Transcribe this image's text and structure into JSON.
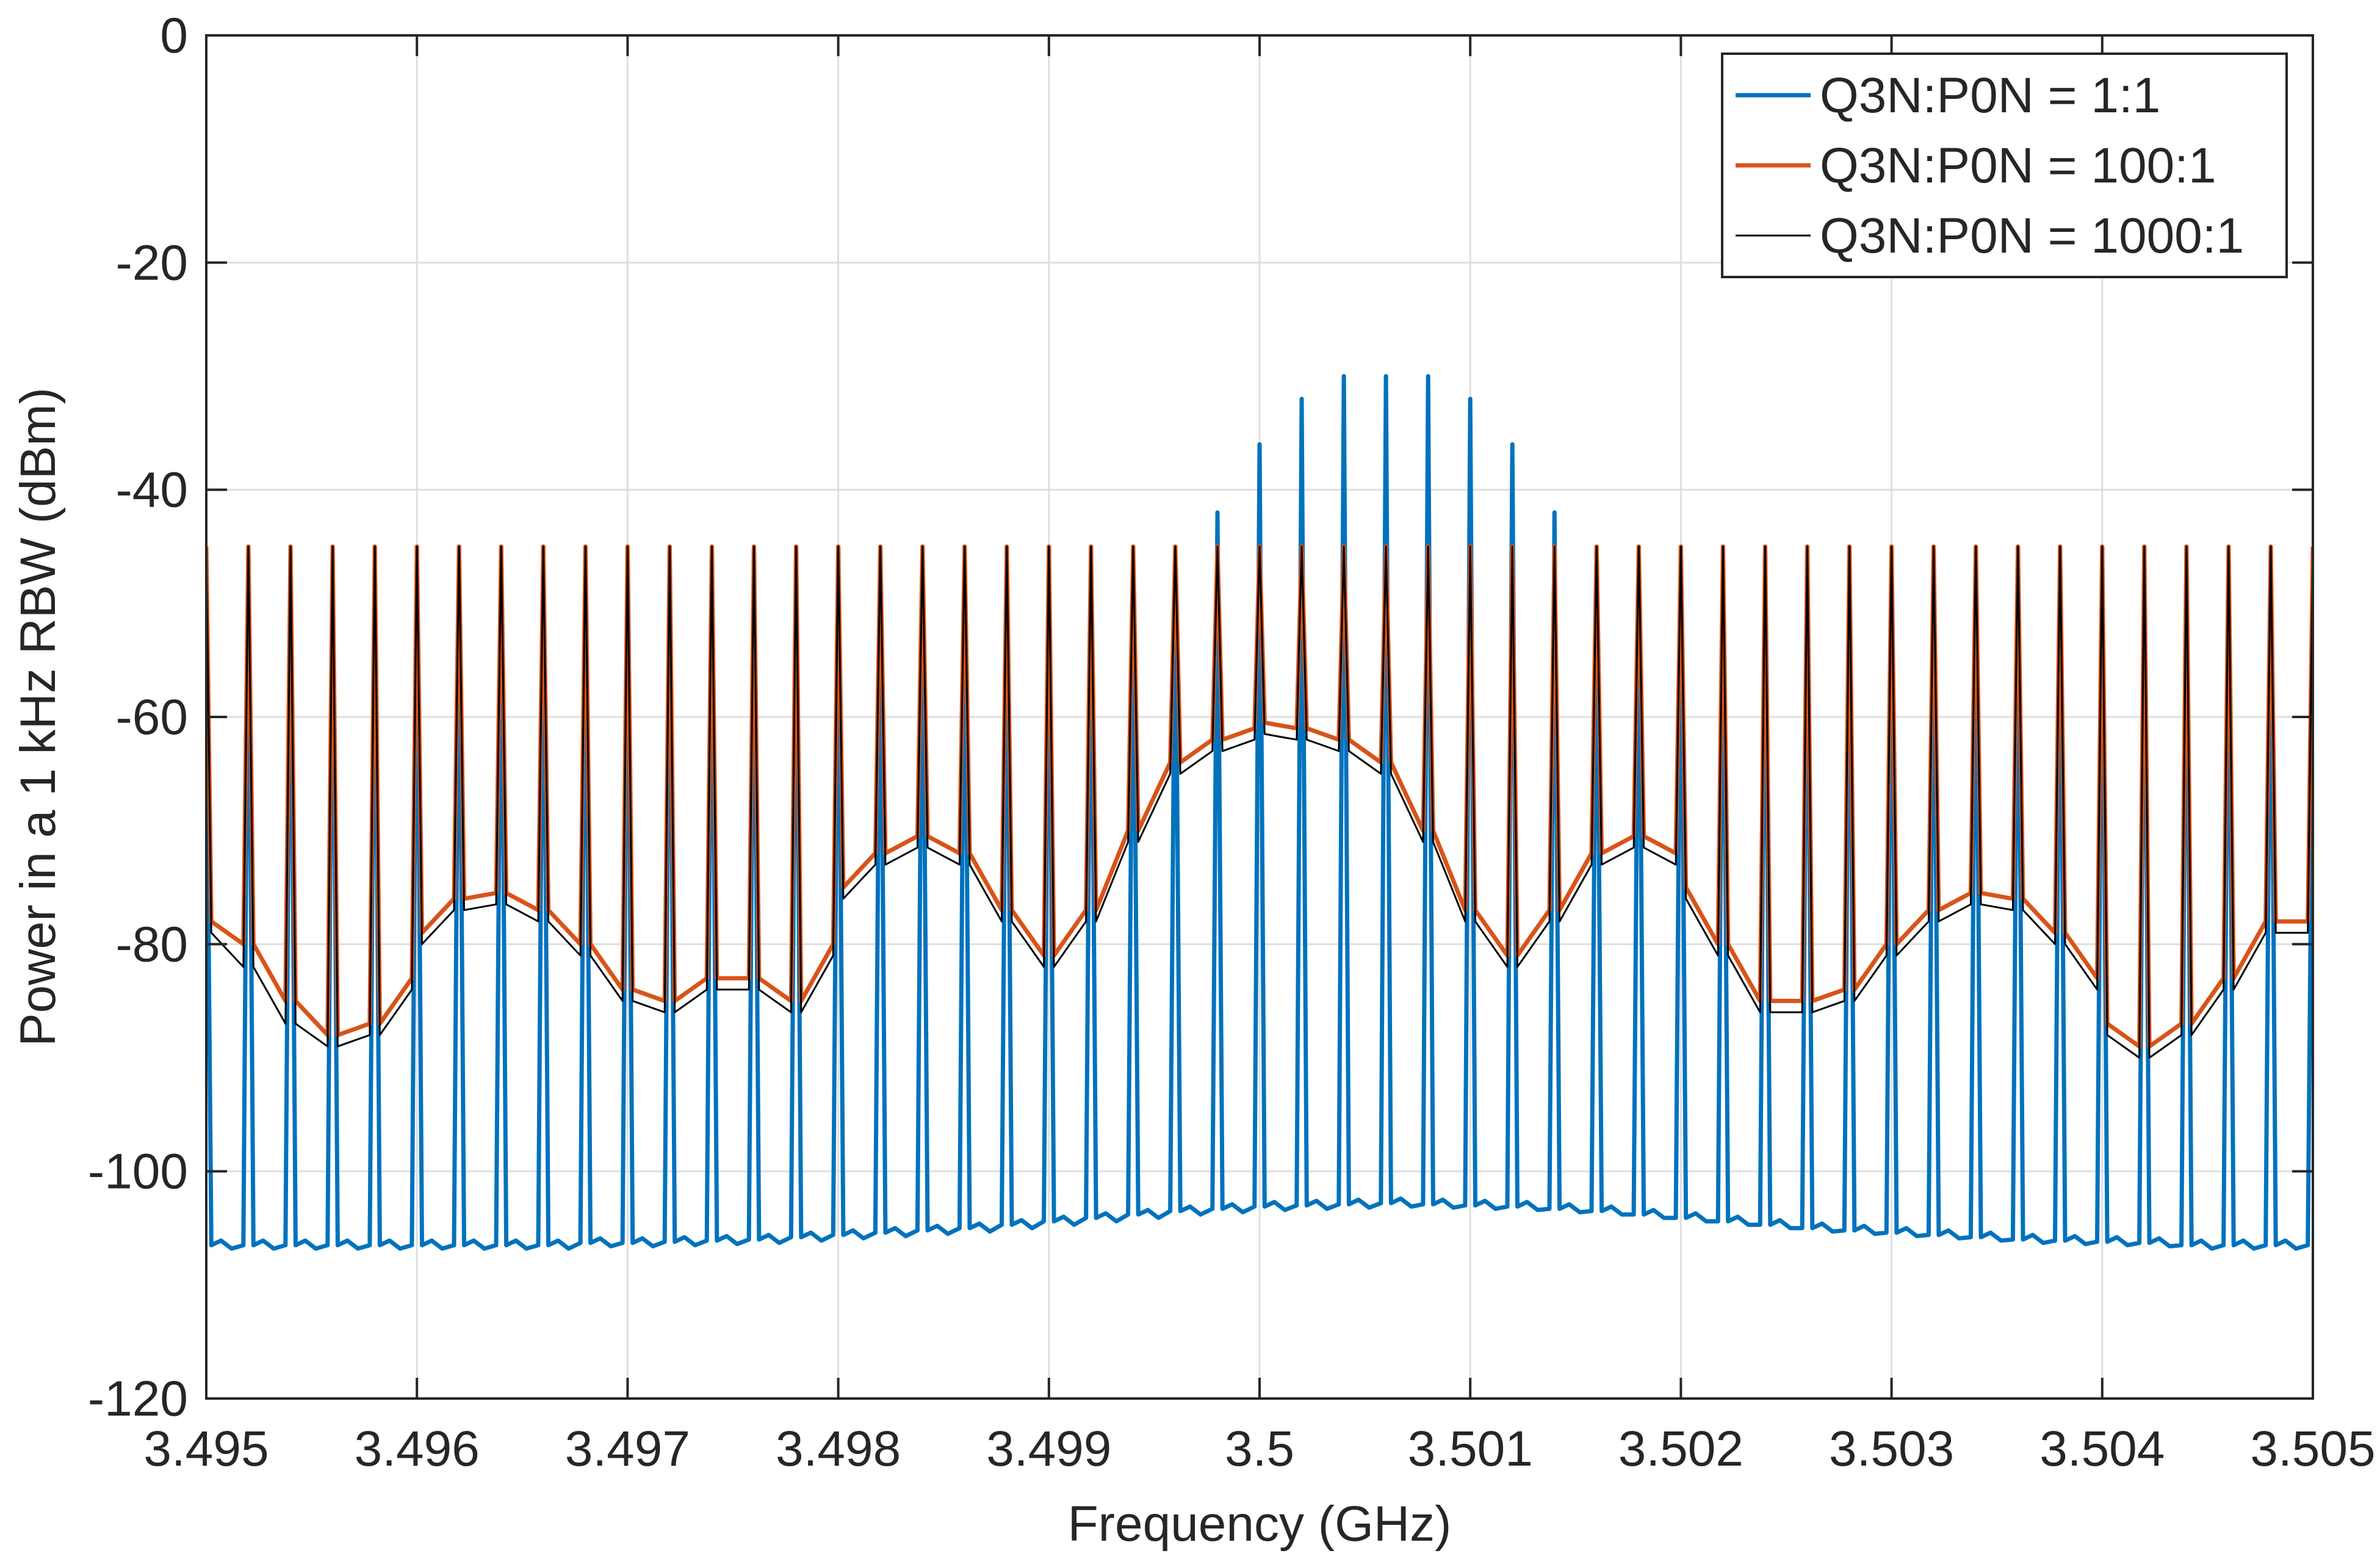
{
  "chart_data": {
    "type": "line",
    "xlabel": "Frequency (GHz)",
    "ylabel": "Power in a 1 kHz RBW (dBm)",
    "xlim": [
      3.495,
      3.505
    ],
    "ylim": [
      -120,
      0
    ],
    "x_ticks": [
      "3.495",
      "3.496",
      "3.497",
      "3.498",
      "3.499",
      "3.5",
      "3.501",
      "3.502",
      "3.503",
      "3.504",
      "3.505"
    ],
    "y_ticks": [
      "0",
      "-20",
      "-40",
      "-60",
      "-80",
      "-100",
      "-120"
    ],
    "grid": true,
    "legend_position": "top-right",
    "comb": {
      "tone_spacing_ghz": 0.0002,
      "first_tone_ghz": 3.495,
      "last_tone_ghz": 3.505
    },
    "series": [
      {
        "name": "Q3N:P0N = 1:1",
        "color": "#0072BD",
        "line_style": "thick",
        "description_values": "tone peaks (dBm) at comb tones from 3.495 to 3.505 GHz; floor between tones",
        "peaks": [
          -56,
          -45,
          -45,
          -45,
          -45,
          -45,
          -45,
          -45,
          -45,
          -45,
          -45,
          -45,
          -45,
          -45,
          -45,
          -45,
          -45,
          -45,
          -45,
          -45,
          -45,
          -45,
          -45,
          -45,
          -42,
          -36,
          -32,
          -30,
          -30,
          -30,
          -32,
          -36,
          -42,
          -45,
          -45,
          -45,
          -45,
          -45,
          -45,
          -45,
          -45,
          -45,
          -45,
          -45,
          -45,
          -45,
          -45,
          -45,
          -45,
          -45,
          -56
        ],
        "floor": [
          -106.5,
          -106.5,
          -106.5,
          -106.5,
          -106.5,
          -106.5,
          -106.5,
          -106.5,
          -106.5,
          -106.3,
          -106.3,
          -106.2,
          -106.1,
          -106,
          -105.8,
          -105.6,
          -105.4,
          -105.2,
          -105,
          -104.7,
          -104.4,
          -104.1,
          -103.8,
          -103.5,
          -103.3,
          -103.1,
          -103,
          -102.9,
          -102.8,
          -102.9,
          -103,
          -103.1,
          -103.3,
          -103.5,
          -103.8,
          -104.1,
          -104.4,
          -104.7,
          -105,
          -105.2,
          -105.4,
          -105.6,
          -105.8,
          -106,
          -106.1,
          -106.2,
          -106.3,
          -106.5,
          -106.5,
          -106.5
        ]
      },
      {
        "name": "Q3N:P0N = 100:1",
        "color": "#D95319",
        "line_style": "thick",
        "peaks": [
          -45,
          -45,
          -45,
          -45,
          -45,
          -45,
          -45,
          -45,
          -45,
          -45,
          -45,
          -45,
          -45,
          -45,
          -45,
          -45,
          -45,
          -45,
          -45,
          -45,
          -45,
          -45,
          -45,
          -45,
          -45,
          -45,
          -45,
          -45,
          -45,
          -45,
          -45,
          -45,
          -45,
          -45,
          -45,
          -45,
          -45,
          -45,
          -45,
          -45,
          -45,
          -45,
          -45,
          -45,
          -45,
          -45,
          -45,
          -45,
          -45,
          -45,
          -45
        ],
        "floor": [
          -78,
          -80,
          -85,
          -88,
          -87,
          -83,
          -79,
          -76,
          -75.5,
          -77,
          -80,
          -84,
          -85,
          -83,
          -83,
          -85,
          -80,
          -75,
          -72,
          -70.5,
          -72,
          -77,
          -81,
          -77,
          -70,
          -64,
          -62,
          -61,
          -60.5,
          -61,
          -62,
          -64,
          -70,
          -77,
          -81,
          -77,
          -72,
          -70.5,
          -72,
          -75,
          -80,
          -85,
          -85,
          -84,
          -80,
          -77,
          -75.5,
          -76,
          -79,
          -83,
          -87,
          -89,
          -87,
          -83,
          -78
        ]
      },
      {
        "name": "Q3N:P0N = 1000:1",
        "color": "#000000",
        "line_style": "thin",
        "peaks": [
          -45,
          -45,
          -45,
          -45,
          -45,
          -45,
          -45,
          -45,
          -45,
          -45,
          -45,
          -45,
          -45,
          -45,
          -45,
          -45,
          -45,
          -45,
          -45,
          -45,
          -45,
          -45,
          -45,
          -45,
          -45,
          -45,
          -45,
          -45,
          -45,
          -45,
          -45,
          -45,
          -45,
          -45,
          -45,
          -45,
          -45,
          -45,
          -45,
          -45,
          -45,
          -45,
          -45,
          -45,
          -45,
          -45,
          -45,
          -45,
          -45,
          -45,
          -45
        ],
        "floor": [
          -79,
          -82,
          -87,
          -89,
          -88,
          -84,
          -80,
          -77,
          -76.5,
          -78,
          -81,
          -85,
          -86,
          -84,
          -84,
          -86,
          -81,
          -76,
          -73,
          -71.5,
          -73,
          -78,
          -82,
          -78,
          -71,
          -65,
          -63,
          -62,
          -61.5,
          -62,
          -63,
          -65,
          -71,
          -78,
          -82,
          -78,
          -73,
          -71.5,
          -73,
          -76,
          -81,
          -86,
          -86,
          -85,
          -81,
          -78,
          -76.5,
          -77,
          -80,
          -84,
          -88,
          -90,
          -88,
          -84,
          -79
        ]
      }
    ]
  }
}
